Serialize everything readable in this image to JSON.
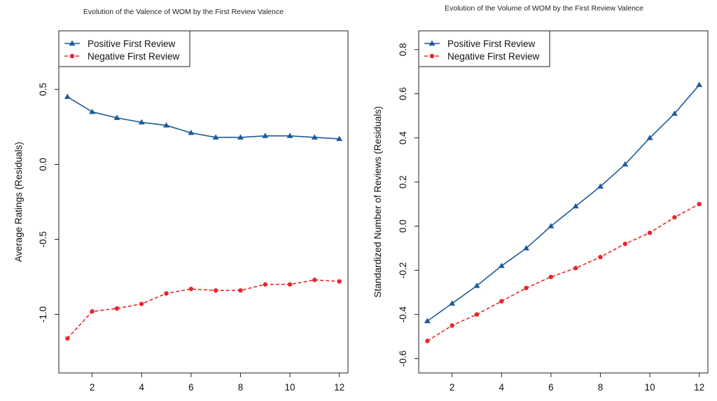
{
  "chart_data": [
    {
      "type": "line",
      "title": "Evolution of the Valence of WOM by the First Review Valence",
      "xlabel": "",
      "ylabel": "Average Ratings (Residuals)",
      "x": [
        1,
        2,
        3,
        4,
        5,
        6,
        7,
        8,
        9,
        10,
        11,
        12
      ],
      "xlim": [
        0.65,
        12.35
      ],
      "xticks": [
        2,
        4,
        6,
        8,
        10,
        12
      ],
      "xtick_labels": [
        "2",
        "4",
        "6",
        "8",
        "10",
        "12"
      ],
      "ylim": [
        -1.39,
        0.89
      ],
      "yticks": [
        0.5,
        0.0,
        -0.5,
        -1.0
      ],
      "ytick_labels": [
        "0.5",
        "0.0",
        "-0.5",
        "-1.0"
      ],
      "grid": false,
      "legend_position": "top-left",
      "series": [
        {
          "name": "Positive First Review",
          "color": "#1f5b99",
          "line_style": "solid",
          "marker": "triangle",
          "values": [
            0.45,
            0.35,
            0.31,
            0.28,
            0.26,
            0.21,
            0.18,
            0.18,
            0.19,
            0.19,
            0.18,
            0.17
          ]
        },
        {
          "name": "Negative First Review",
          "color": "#e8262d",
          "line_style": "dashed",
          "marker": "circle",
          "values": [
            -1.16,
            -0.98,
            -0.96,
            -0.93,
            -0.86,
            -0.83,
            -0.84,
            -0.84,
            -0.8,
            -0.8,
            -0.77,
            -0.78
          ]
        }
      ]
    },
    {
      "type": "line",
      "title": "Evolution of the Volume of WOM by the First Review Valence",
      "xlabel": "",
      "ylabel": "Standardized Number of Reviews (Residuals)",
      "x": [
        1,
        2,
        3,
        4,
        5,
        6,
        7,
        8,
        9,
        10,
        11,
        12
      ],
      "xlim": [
        0.65,
        12.35
      ],
      "xticks": [
        2,
        4,
        6,
        8,
        10,
        12
      ],
      "xtick_labels": [
        "2",
        "4",
        "6",
        "8",
        "10",
        "12"
      ],
      "ylim": [
        -0.665,
        0.885
      ],
      "yticks": [
        0.8,
        0.6,
        0.4,
        0.2,
        0.0,
        -0.2,
        -0.4,
        -0.6
      ],
      "ytick_labels": [
        "0.8",
        "0.6",
        "0.4",
        "0.2",
        "0.0",
        "-0.2",
        "-0.4",
        "-0.6"
      ],
      "grid": false,
      "legend_position": "top-left",
      "series": [
        {
          "name": "Positive First Review",
          "color": "#1f5b99",
          "line_style": "solid",
          "marker": "triangle",
          "values": [
            -0.43,
            -0.35,
            -0.27,
            -0.18,
            -0.1,
            0.0,
            0.09,
            0.18,
            0.28,
            0.4,
            0.51,
            0.64
          ]
        },
        {
          "name": "Negative First Review",
          "color": "#e8262d",
          "line_style": "dashed",
          "marker": "circle",
          "values": [
            -0.52,
            -0.45,
            -0.4,
            -0.34,
            -0.28,
            -0.23,
            -0.19,
            -0.14,
            -0.08,
            -0.03,
            0.04,
            0.1
          ]
        }
      ]
    }
  ]
}
